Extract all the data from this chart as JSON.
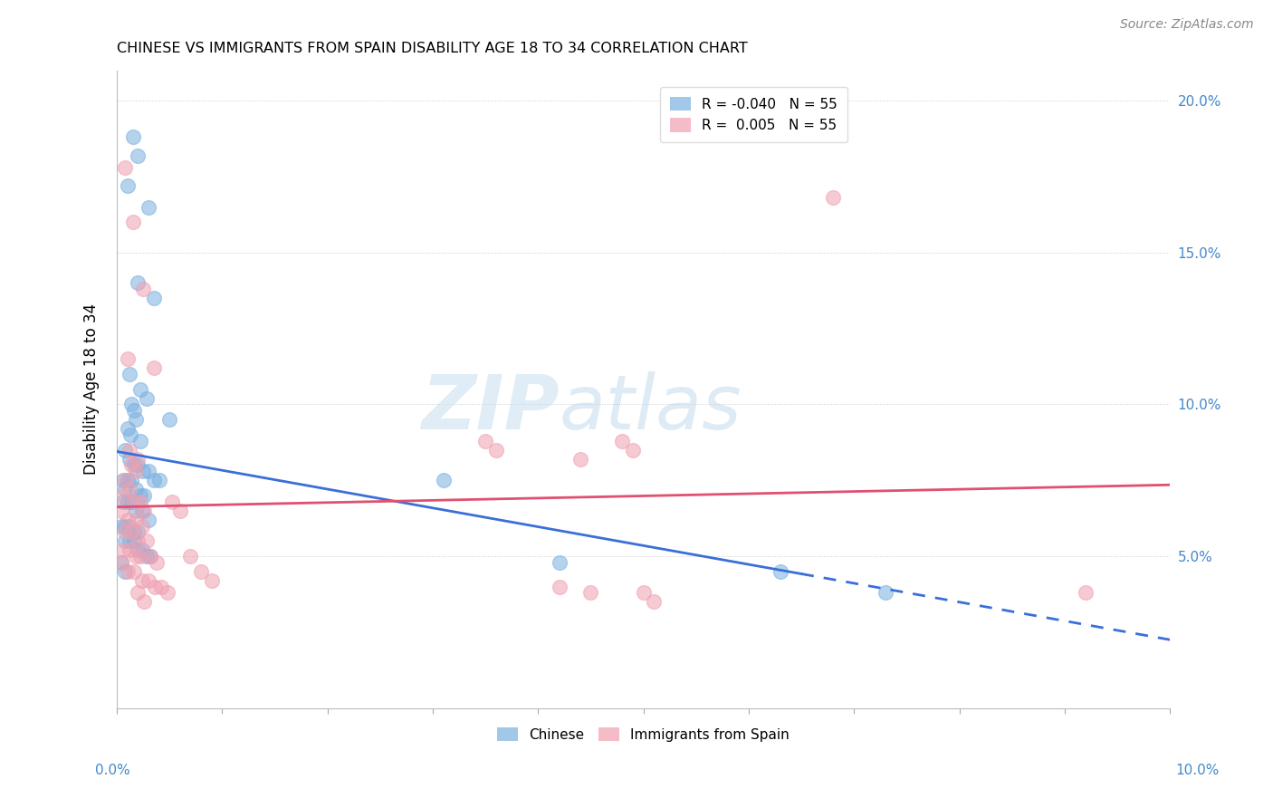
{
  "title": "CHINESE VS IMMIGRANTS FROM SPAIN DISABILITY AGE 18 TO 34 CORRELATION CHART",
  "source": "Source: ZipAtlas.com",
  "ylabel": "Disability Age 18 to 34",
  "xmin": 0.0,
  "xmax": 10.0,
  "ymin": 0.0,
  "ymax": 21.0,
  "yticks": [
    5.0,
    10.0,
    15.0,
    20.0
  ],
  "ytick_labels": [
    "5.0%",
    "10.0%",
    "15.0%",
    "20.0%"
  ],
  "chinese_color": "#7ab0e0",
  "spain_color": "#f0a0b0",
  "chinese_line_color": "#3a6fd8",
  "spain_line_color": "#e05070",
  "watermark_zip": "ZIP",
  "watermark_atlas": "atlas",
  "chinese_R": -0.04,
  "spain_R": 0.005,
  "chinese_N": 55,
  "spain_N": 55,
  "chinese_points": [
    [
      0.15,
      18.8
    ],
    [
      0.2,
      18.2
    ],
    [
      0.1,
      17.2
    ],
    [
      0.3,
      16.5
    ],
    [
      0.2,
      14.0
    ],
    [
      0.35,
      13.5
    ],
    [
      0.12,
      11.0
    ],
    [
      0.22,
      10.5
    ],
    [
      0.28,
      10.2
    ],
    [
      0.14,
      10.0
    ],
    [
      0.16,
      9.8
    ],
    [
      0.18,
      9.5
    ],
    [
      0.1,
      9.2
    ],
    [
      0.13,
      9.0
    ],
    [
      0.22,
      8.8
    ],
    [
      0.08,
      8.5
    ],
    [
      0.12,
      8.2
    ],
    [
      0.16,
      8.0
    ],
    [
      0.2,
      8.0
    ],
    [
      0.25,
      7.8
    ],
    [
      0.3,
      7.8
    ],
    [
      0.06,
      7.5
    ],
    [
      0.1,
      7.5
    ],
    [
      0.14,
      7.5
    ],
    [
      0.35,
      7.5
    ],
    [
      0.4,
      7.5
    ],
    [
      0.08,
      7.2
    ],
    [
      0.18,
      7.2
    ],
    [
      0.22,
      7.0
    ],
    [
      0.26,
      7.0
    ],
    [
      0.06,
      6.8
    ],
    [
      0.1,
      6.8
    ],
    [
      0.14,
      6.8
    ],
    [
      0.18,
      6.5
    ],
    [
      0.24,
      6.5
    ],
    [
      0.3,
      6.2
    ],
    [
      0.04,
      6.0
    ],
    [
      0.08,
      6.0
    ],
    [
      0.12,
      6.0
    ],
    [
      0.16,
      5.8
    ],
    [
      0.2,
      5.8
    ],
    [
      0.08,
      5.5
    ],
    [
      0.12,
      5.5
    ],
    [
      0.16,
      5.5
    ],
    [
      0.2,
      5.2
    ],
    [
      0.24,
      5.2
    ],
    [
      0.28,
      5.0
    ],
    [
      0.32,
      5.0
    ],
    [
      0.04,
      4.8
    ],
    [
      0.08,
      4.5
    ],
    [
      0.5,
      9.5
    ],
    [
      3.1,
      7.5
    ],
    [
      4.2,
      4.8
    ],
    [
      6.3,
      4.5
    ],
    [
      7.3,
      3.8
    ]
  ],
  "spain_points": [
    [
      0.08,
      17.8
    ],
    [
      0.15,
      16.0
    ],
    [
      0.25,
      13.8
    ],
    [
      6.8,
      16.8
    ],
    [
      0.1,
      11.5
    ],
    [
      0.35,
      11.2
    ],
    [
      4.8,
      8.8
    ],
    [
      4.9,
      8.5
    ],
    [
      0.12,
      8.5
    ],
    [
      0.2,
      8.2
    ],
    [
      0.14,
      8.0
    ],
    [
      0.18,
      7.8
    ],
    [
      0.08,
      7.5
    ],
    [
      0.12,
      7.2
    ],
    [
      0.06,
      7.0
    ],
    [
      0.16,
      6.8
    ],
    [
      0.22,
      6.8
    ],
    [
      0.26,
      6.5
    ],
    [
      0.04,
      6.5
    ],
    [
      0.1,
      6.2
    ],
    [
      0.18,
      6.2
    ],
    [
      0.24,
      6.0
    ],
    [
      0.08,
      5.8
    ],
    [
      0.14,
      5.8
    ],
    [
      0.2,
      5.5
    ],
    [
      0.28,
      5.5
    ],
    [
      0.06,
      5.2
    ],
    [
      0.12,
      5.2
    ],
    [
      0.18,
      5.0
    ],
    [
      0.22,
      5.0
    ],
    [
      0.32,
      5.0
    ],
    [
      0.38,
      4.8
    ],
    [
      0.04,
      4.8
    ],
    [
      0.1,
      4.5
    ],
    [
      0.16,
      4.5
    ],
    [
      0.24,
      4.2
    ],
    [
      0.3,
      4.2
    ],
    [
      0.36,
      4.0
    ],
    [
      0.42,
      4.0
    ],
    [
      0.48,
      3.8
    ],
    [
      0.2,
      3.8
    ],
    [
      0.26,
      3.5
    ],
    [
      3.5,
      8.8
    ],
    [
      3.6,
      8.5
    ],
    [
      4.4,
      8.2
    ],
    [
      5.0,
      3.8
    ],
    [
      5.1,
      3.5
    ],
    [
      4.2,
      4.0
    ],
    [
      4.5,
      3.8
    ],
    [
      9.2,
      3.8
    ],
    [
      0.52,
      6.8
    ],
    [
      0.6,
      6.5
    ],
    [
      0.7,
      5.0
    ],
    [
      0.8,
      4.5
    ],
    [
      0.9,
      4.2
    ]
  ]
}
